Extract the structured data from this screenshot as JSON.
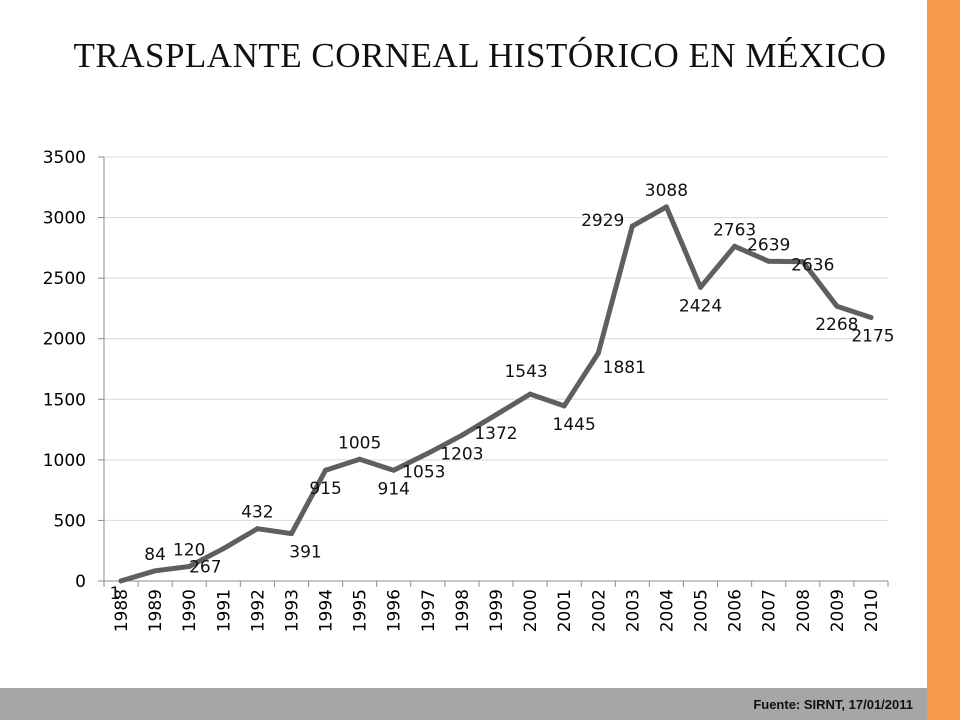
{
  "slide": {
    "title": "TRASPLANTE CORNEAL HISTÓRICO EN MÉXICO",
    "source": "Fuente: SIRNT, 17/01/2011"
  },
  "colors": {
    "line": "#5f5f5f",
    "accent_bar": "#f79a4a",
    "footer_bar": "#a6a6a6",
    "grid": "#d9d9d9"
  },
  "chart_data": {
    "type": "line",
    "title": "TRASPLANTE CORNEAL HISTÓRICO EN MÉXICO",
    "xlabel": "",
    "ylabel": "",
    "ylim": [
      0,
      3500
    ],
    "yticks": [
      0,
      500,
      1000,
      1500,
      2000,
      2500,
      3000,
      3500
    ],
    "grid": true,
    "legend": "none",
    "categories": [
      "1988",
      "1989",
      "1990",
      "1991",
      "1992",
      "1993",
      "1994",
      "1995",
      "1996",
      "1997",
      "1998",
      "1999",
      "2000",
      "2001",
      "2002",
      "2003",
      "2004",
      "2005",
      "2006",
      "2007",
      "2008",
      "2009",
      "2010"
    ],
    "series": [
      {
        "values": [
          1,
          84,
          120,
          267,
          432,
          391,
          915,
          1005,
          914,
          1053,
          1203,
          1372,
          1543,
          1445,
          1881,
          2929,
          3088,
          2424,
          2763,
          2639,
          2636,
          2268,
          2175
        ],
        "labels": [
          "1",
          "84",
          "120",
          "267",
          "432",
          "391",
          "915",
          "1005",
          "914",
          "1053",
          "1203",
          "1372",
          "1543",
          "1445",
          "1881",
          "2929",
          "3088",
          "2424",
          "2763",
          "2639",
          "2636",
          "2268",
          "2175"
        ]
      }
    ]
  }
}
